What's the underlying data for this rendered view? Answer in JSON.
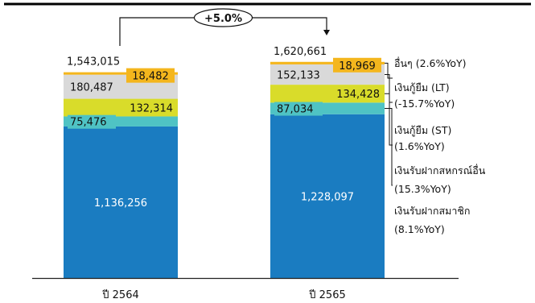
{
  "chart_data": {
    "type": "bar",
    "stacked": true,
    "categories": [
      "ปี 2564",
      "ปี 2565"
    ],
    "totals": [
      "1,543,015",
      "1,620,661"
    ],
    "series": [
      {
        "name": "เงินรับฝากสมาชิก",
        "yoy": "(8.1%YoY)",
        "values": [
          1136256,
          1228097
        ],
        "labels": [
          "1,136,256",
          "1,228,097"
        ],
        "color": "#1a7cc1",
        "label_color": "#ffffff"
      },
      {
        "name": "เงินรับฝากสหกรณ์อื่น",
        "yoy": "(15.3%YoY)",
        "values": [
          75476,
          87034
        ],
        "labels": [
          "75,476",
          "87,034"
        ],
        "color": "#4fc3c4",
        "label_color": "#111111"
      },
      {
        "name": "เงินกู้ยืม (ST)",
        "yoy": "(1.6%YoY)",
        "values": [
          132314,
          134428
        ],
        "labels": [
          "132,314",
          "134,428"
        ],
        "color": "#d9dc2a",
        "label_color": "#111111"
      },
      {
        "name": "เงินกู้ยืม (LT)",
        "yoy": "(-15.7%YoY)",
        "values": [
          180487,
          152133
        ],
        "labels": [
          "180,487",
          "152,133"
        ],
        "color": "#d9d9d9",
        "label_color": "#111111"
      },
      {
        "name": "อื่นๆ",
        "yoy": "(2.6%YoY)",
        "values": [
          18482,
          18969
        ],
        "labels": [
          "18,482",
          "18,969"
        ],
        "color": "#f4b61d",
        "label_color": "#111111"
      }
    ],
    "growth_label": "+5.0%",
    "colors": {
      "axis": "#222222",
      "top_rule": "#000000"
    }
  }
}
